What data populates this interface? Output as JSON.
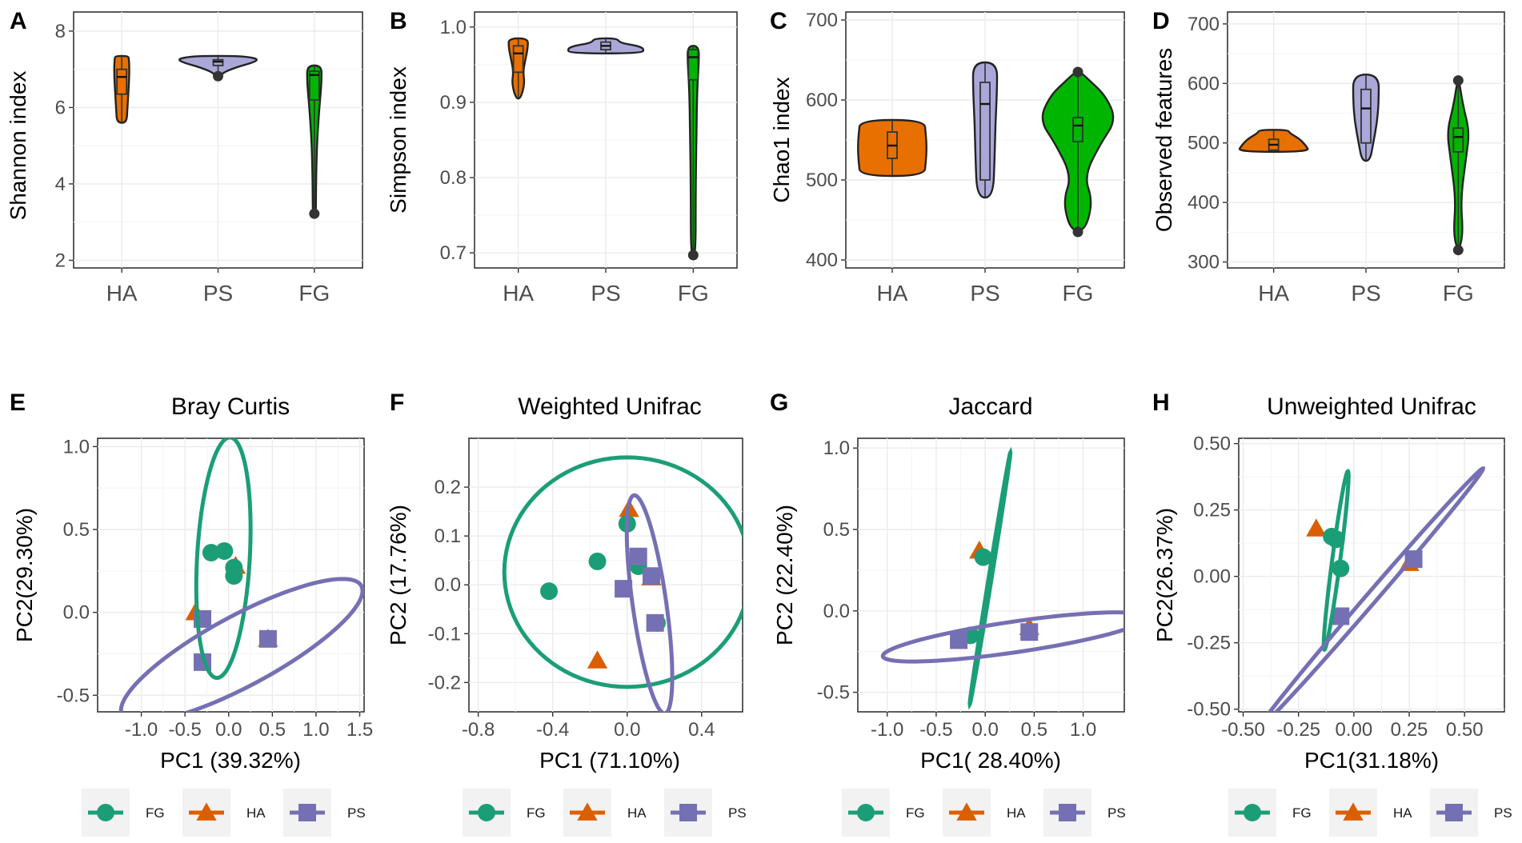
{
  "colors": {
    "FG": "#1b9e77",
    "HA": "#d95f02",
    "PS": "#7570b3",
    "FG_violin": "#00b500",
    "HA_violin": "#e87000",
    "PS_violin": "#a9a8d8"
  },
  "chart_data": [
    {
      "id": "A",
      "type": "violin",
      "letter": "A",
      "ylabel": "Shannon index",
      "ylim": [
        1.8,
        8.5
      ],
      "ticks": [
        2,
        4,
        6,
        8
      ],
      "tick_labels": [
        "2",
        "4",
        "6",
        "8"
      ],
      "categories": [
        "HA",
        "PS",
        "FG"
      ],
      "groups": [
        {
          "name": "HA",
          "min": 5.6,
          "q1": 6.35,
          "median": 6.8,
          "q3": 7.0,
          "max": 7.35,
          "outliers": [],
          "shape": "HA-A"
        },
        {
          "name": "PS",
          "min": 6.8,
          "q1": 7.1,
          "median": 7.2,
          "q3": 7.25,
          "max": 7.35,
          "outliers": [
            6.82
          ],
          "shape": "PS-A"
        },
        {
          "name": "FG",
          "min": 3.2,
          "q1": 6.2,
          "median": 6.85,
          "q3": 6.95,
          "max": 7.1,
          "outliers": [
            3.22
          ],
          "shape": "FG-A"
        }
      ]
    },
    {
      "id": "B",
      "type": "violin",
      "letter": "B",
      "ylabel": "Simpson index",
      "ylim": [
        0.68,
        1.02
      ],
      "ticks": [
        0.7,
        0.8,
        0.9,
        1.0
      ],
      "tick_labels": [
        "0.7",
        "0.8",
        "0.9",
        "1.0"
      ],
      "categories": [
        "HA",
        "PS",
        "FG"
      ],
      "groups": [
        {
          "name": "HA",
          "min": 0.905,
          "q1": 0.94,
          "median": 0.965,
          "q3": 0.975,
          "max": 0.985,
          "outliers": [],
          "shape": "HA-B"
        },
        {
          "name": "PS",
          "min": 0.965,
          "q1": 0.97,
          "median": 0.975,
          "q3": 0.98,
          "max": 0.985,
          "outliers": [],
          "shape": "PS-B"
        },
        {
          "name": "FG",
          "min": 0.695,
          "q1": 0.93,
          "median": 0.96,
          "q3": 0.97,
          "max": 0.975,
          "outliers": [
            0.697
          ],
          "shape": "FG-B"
        }
      ]
    },
    {
      "id": "C",
      "type": "violin",
      "letter": "C",
      "ylabel": "Chao1 index",
      "ylim": [
        390,
        710
      ],
      "ticks": [
        400,
        500,
        600,
        700
      ],
      "tick_labels": [
        "400",
        "500",
        "600",
        "700"
      ],
      "categories": [
        "HA",
        "PS",
        "FG"
      ],
      "groups": [
        {
          "name": "HA",
          "min": 505,
          "q1": 527,
          "median": 543,
          "q3": 560,
          "max": 575,
          "outliers": [],
          "shape": "HA-C"
        },
        {
          "name": "PS",
          "min": 478,
          "q1": 500,
          "median": 595,
          "q3": 622,
          "max": 647,
          "outliers": [],
          "shape": "PS-C"
        },
        {
          "name": "FG",
          "min": 435,
          "q1": 548,
          "median": 568,
          "q3": 578,
          "max": 635,
          "outliers": [
            435,
            635
          ],
          "shape": "FG-C"
        }
      ]
    },
    {
      "id": "D",
      "type": "violin",
      "letter": "D",
      "ylabel": "Observed features",
      "ylim": [
        290,
        720
      ],
      "ticks": [
        300,
        400,
        500,
        600,
        700
      ],
      "tick_labels": [
        "300",
        "400",
        "500",
        "600",
        "700"
      ],
      "categories": [
        "HA",
        "PS",
        "FG"
      ],
      "groups": [
        {
          "name": "HA",
          "min": 485,
          "q1": 488,
          "median": 497,
          "q3": 506,
          "max": 522,
          "outliers": [],
          "shape": "HA-D"
        },
        {
          "name": "PS",
          "min": 470,
          "q1": 500,
          "median": 558,
          "q3": 590,
          "max": 615,
          "outliers": [],
          "shape": "PS-D"
        },
        {
          "name": "FG",
          "min": 320,
          "q1": 485,
          "median": 510,
          "q3": 525,
          "max": 605,
          "outliers": [
            320,
            605
          ],
          "shape": "FG-D"
        }
      ]
    },
    {
      "id": "E",
      "type": "scatter",
      "letter": "E",
      "title": "Bray Curtis",
      "xlabel": "PC1 (39.32%)",
      "ylabel": "PC2(29.30%)",
      "xlim": [
        -1.5,
        1.55
      ],
      "ylim": [
        -0.6,
        1.05
      ],
      "xticks": [
        -1.0,
        -0.5,
        0.0,
        0.5,
        1.0,
        1.5
      ],
      "xtick_labels": [
        "-1.0",
        "-0.5",
        "0.0",
        "0.5",
        "1.0",
        "1.5"
      ],
      "yticks": [
        -0.5,
        0.0,
        0.5,
        1.0
      ],
      "ytick_labels": [
        "-0.5",
        "0.0",
        "0.5",
        "1.0"
      ],
      "points": [
        {
          "group": "HA",
          "x": 0.08,
          "y": 0.28
        },
        {
          "group": "HA",
          "x": -0.38,
          "y": 0.0
        },
        {
          "group": "HA",
          "x": 0.45,
          "y": -0.16
        },
        {
          "group": "FG",
          "x": -0.2,
          "y": 0.36
        },
        {
          "group": "FG",
          "x": -0.05,
          "y": 0.37
        },
        {
          "group": "FG",
          "x": 0.06,
          "y": 0.27
        },
        {
          "group": "FG",
          "x": 0.06,
          "y": 0.22
        },
        {
          "group": "FG",
          "x": -0.3,
          "y": -0.3
        },
        {
          "group": "PS",
          "x": -0.3,
          "y": -0.04
        },
        {
          "group": "PS",
          "x": 0.45,
          "y": -0.16
        },
        {
          "group": "PS",
          "x": -0.3,
          "y": -0.3
        }
      ],
      "ellipses": [
        {
          "group": "FG",
          "cx": -0.06,
          "cy": 0.33,
          "a": 0.73,
          "b": 0.3,
          "angle_deg": 83
        },
        {
          "group": "PS",
          "cx": 0.15,
          "cy": -0.23,
          "a": 1.43,
          "b": 0.23,
          "angle_deg": 15
        }
      ],
      "legend": [
        "FG",
        "HA",
        "PS"
      ]
    },
    {
      "id": "F",
      "type": "scatter",
      "letter": "F",
      "title": "Weighted Unifrac",
      "xlabel": "PC1 (71.10%)",
      "ylabel": "PC2 (17.76%)",
      "xlim": [
        -0.85,
        0.62
      ],
      "ylim": [
        -0.26,
        0.3
      ],
      "xticks": [
        -0.8,
        -0.4,
        0.0,
        0.4
      ],
      "xtick_labels": [
        "-0.8",
        "-0.4",
        "0.0",
        "0.4"
      ],
      "yticks": [
        -0.2,
        -0.1,
        0.0,
        0.1,
        0.2
      ],
      "ytick_labels": [
        "-0.2",
        "-0.1",
        "0.0",
        "0.1",
        "0.2"
      ],
      "points": [
        {
          "group": "HA",
          "x": 0.01,
          "y": 0.155
        },
        {
          "group": "HA",
          "x": -0.16,
          "y": -0.155
        },
        {
          "group": "HA",
          "x": 0.13,
          "y": 0.015
        },
        {
          "group": "FG",
          "x": 0.0,
          "y": 0.125
        },
        {
          "group": "FG",
          "x": -0.16,
          "y": 0.048
        },
        {
          "group": "FG",
          "x": -0.42,
          "y": -0.013
        },
        {
          "group": "FG",
          "x": 0.06,
          "y": 0.038
        },
        {
          "group": "FG",
          "x": 0.16,
          "y": -0.078
        },
        {
          "group": "PS",
          "x": 0.06,
          "y": 0.058
        },
        {
          "group": "PS",
          "x": -0.02,
          "y": -0.008
        },
        {
          "group": "PS",
          "x": 0.13,
          "y": 0.018
        },
        {
          "group": "PS",
          "x": 0.15,
          "y": -0.078
        }
      ],
      "ellipses": [
        {
          "group": "FG",
          "cx": 0.0,
          "cy": 0.026,
          "a": 0.66,
          "b": 0.235,
          "angle_deg": 0
        },
        {
          "group": "PS",
          "cx": 0.12,
          "cy": -0.04,
          "a": 0.24,
          "b": 0.085,
          "angle_deg": -67
        }
      ],
      "legend": [
        "FG",
        "HA",
        "PS"
      ]
    },
    {
      "id": "G",
      "type": "scatter",
      "letter": "G",
      "title": "Jaccard",
      "xlabel": "PC1( 28.40%)",
      "ylabel": "PC2 (22.40%)",
      "xlim": [
        -1.3,
        1.42
      ],
      "ylim": [
        -0.62,
        1.06
      ],
      "xticks": [
        -1.0,
        -0.5,
        0.0,
        0.5,
        1.0
      ],
      "xtick_labels": [
        "-1.0",
        "-0.5",
        "0.0",
        "0.5",
        "1.0"
      ],
      "yticks": [
        -0.5,
        0.0,
        0.5,
        1.0
      ],
      "ytick_labels": [
        "-0.5",
        "0.0",
        "0.5",
        "1.0"
      ],
      "points": [
        {
          "group": "HA",
          "x": -0.06,
          "y": 0.37
        },
        {
          "group": "HA",
          "x": 0.45,
          "y": -0.1
        },
        {
          "group": "FG",
          "x": -0.02,
          "y": 0.33
        },
        {
          "group": "FG",
          "x": -0.15,
          "y": -0.15
        },
        {
          "group": "PS",
          "x": -0.27,
          "y": -0.18
        },
        {
          "group": "PS",
          "x": 0.45,
          "y": -0.13
        }
      ],
      "ellipses": [
        {
          "group": "FG",
          "cx": 0.05,
          "cy": 0.2,
          "a": 0.8,
          "b": 0.015,
          "angle_deg": 75
        },
        {
          "group": "PS",
          "cx": 0.3,
          "cy": -0.16,
          "a": 1.35,
          "b": 0.095,
          "angle_deg": 5
        }
      ],
      "legend": [
        "FG",
        "HA",
        "PS"
      ]
    },
    {
      "id": "H",
      "type": "scatter",
      "letter": "H",
      "title": "Unweighted Unifrac",
      "xlabel": "PC1(31.18%)",
      "ylabel": "PC2(26.37%)",
      "xlim": [
        -0.52,
        0.68
      ],
      "ylim": [
        -0.51,
        0.52
      ],
      "xticks": [
        -0.5,
        -0.25,
        0.0,
        0.25,
        0.5
      ],
      "xtick_labels": [
        "-0.50",
        "-0.25",
        "0.00",
        "0.25",
        "0.50"
      ],
      "yticks": [
        -0.5,
        -0.25,
        0.0,
        0.25,
        0.5
      ],
      "ytick_labels": [
        "-0.50",
        "-0.25",
        "0.00",
        "0.25",
        "0.50"
      ],
      "points": [
        {
          "group": "HA",
          "x": -0.17,
          "y": 0.18
        },
        {
          "group": "HA",
          "x": 0.25,
          "y": 0.05
        },
        {
          "group": "FG",
          "x": -0.1,
          "y": 0.15
        },
        {
          "group": "FG",
          "x": -0.08,
          "y": 0.14
        },
        {
          "group": "FG",
          "x": -0.06,
          "y": 0.03
        },
        {
          "group": "PS",
          "x": 0.27,
          "y": 0.065
        },
        {
          "group": "PS",
          "x": -0.06,
          "y": -0.15
        }
      ],
      "ellipses": [
        {
          "group": "FG",
          "cx": -0.08,
          "cy": 0.06,
          "a": 0.34,
          "b": 0.018,
          "angle_deg": 81
        },
        {
          "group": "PS",
          "cx": 0.08,
          "cy": -0.08,
          "a": 0.7,
          "b": 0.022,
          "angle_deg": 44
        }
      ],
      "legend": [
        "FG",
        "HA",
        "PS"
      ]
    }
  ]
}
